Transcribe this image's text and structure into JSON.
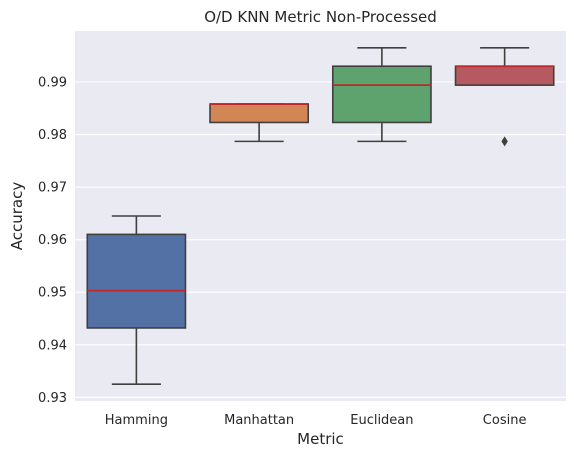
{
  "chart_data": {
    "type": "box",
    "title": "O/D KNN Metric Non-Processed",
    "xlabel": "Metric",
    "ylabel": "Accuracy",
    "ylim": [
      0.9293,
      0.9997
    ],
    "yticks": [
      0.93,
      0.94,
      0.95,
      0.96,
      0.97,
      0.98,
      0.99
    ],
    "ytick_labels": [
      "0.93",
      "0.94",
      "0.95",
      "0.96",
      "0.97",
      "0.98",
      "0.99"
    ],
    "grid": true,
    "categories": [
      "Hamming",
      "Manhattan",
      "Euclidean",
      "Cosine"
    ],
    "colors": {
      "Hamming": "#5471a6",
      "Manhattan": "#d38655",
      "Euclidean": "#5ea26e",
      "Cosine": "#b65a61",
      "median": "#c0282b",
      "outline": "#3f3f3f",
      "background": "#eaeaf2",
      "grid": "#ffffff"
    },
    "boxes": [
      {
        "category": "Hamming",
        "whisker_low": 0.9325,
        "q1": 0.9432,
        "median": 0.9503,
        "q3": 0.961,
        "whisker_high": 0.9645,
        "outliers": []
      },
      {
        "category": "Manhattan",
        "whisker_low": 0.9787,
        "q1": 0.9823,
        "median": 0.9858,
        "q3": 0.9858,
        "whisker_high": 0.9858,
        "outliers": []
      },
      {
        "category": "Euclidean",
        "whisker_low": 0.9787,
        "q1": 0.9823,
        "median": 0.9894,
        "q3": 0.993,
        "whisker_high": 0.9965,
        "outliers": []
      },
      {
        "category": "Cosine",
        "whisker_low": 0.9894,
        "q1": 0.9894,
        "median": 0.993,
        "q3": 0.993,
        "whisker_high": 0.9965,
        "outliers": [
          0.9787
        ]
      }
    ]
  }
}
